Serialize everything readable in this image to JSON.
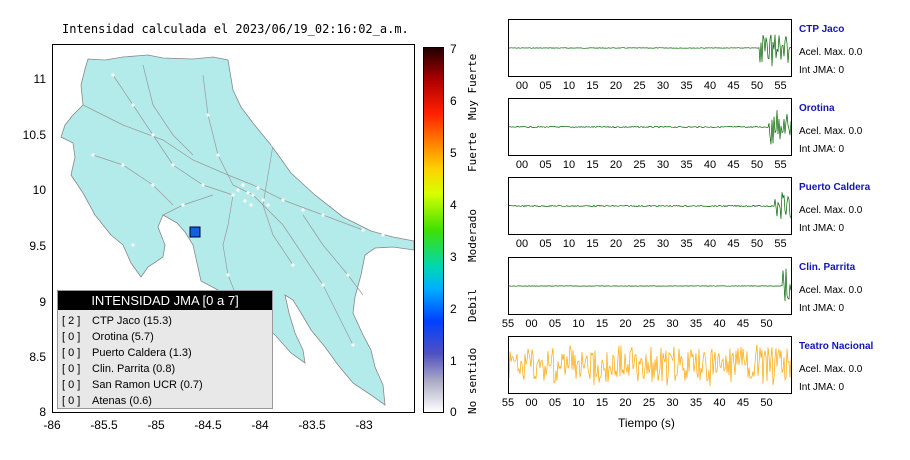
{
  "map": {
    "title": "Intensidad calculada el 2023/06/19_02:16:02_a.m.",
    "y_ticks": [
      "11",
      "10.5",
      "10",
      "9.5",
      "9",
      "8.5",
      "8"
    ],
    "x_ticks": [
      "-86",
      "-85.5",
      "-85",
      "-84.5",
      "-84",
      "-83.5",
      "-83"
    ],
    "land_color": "#b3eaea",
    "marker_color": "#1060e0"
  },
  "legend": {
    "header": "INTENSIDAD JMA [0 a 7]",
    "items": [
      {
        "level": "[ 2 ]",
        "station": "CTP Jaco (15.3)"
      },
      {
        "level": "[ 0 ]",
        "station": "Orotina (5.7)"
      },
      {
        "level": "[ 0 ]",
        "station": "Puerto Caldera (1.3)"
      },
      {
        "level": "[ 0 ]",
        "station": "Clin. Parrita (0.8)"
      },
      {
        "level": "[ 0 ]",
        "station": "San Ramon UCR (0.7)"
      },
      {
        "level": "[ 0 ]",
        "station": "Atenas (0.6)"
      }
    ]
  },
  "colorbar": {
    "ticks": [
      "7",
      "6",
      "5",
      "4",
      "3",
      "2",
      "1",
      "0"
    ],
    "labels": [
      "Muy Fuerte",
      "Fuerte",
      "Moderado",
      "Debil",
      "No sentido"
    ]
  },
  "traces": [
    {
      "name": "CTP Jaco",
      "acel": "Acel. Max. 0.0",
      "int": "Int JMA: 0",
      "ticks": [
        "00",
        "05",
        "10",
        "15",
        "20",
        "25",
        "30",
        "35",
        "40",
        "45",
        "50",
        "55"
      ],
      "color": "#006400"
    },
    {
      "name": "Orotina",
      "acel": "Acel. Max. 0.0",
      "int": "Int JMA: 0",
      "ticks": [
        "00",
        "05",
        "10",
        "15",
        "20",
        "25",
        "30",
        "35",
        "40",
        "45",
        "50",
        "55"
      ],
      "color": "#006400"
    },
    {
      "name": "Puerto Caldera",
      "acel": "Acel. Max. 0.0",
      "int": "Int JMA: 0",
      "ticks": [
        "00",
        "05",
        "10",
        "15",
        "20",
        "25",
        "30",
        "35",
        "40",
        "45",
        "50",
        "55"
      ],
      "color": "#006400"
    },
    {
      "name": "Clin. Parrita",
      "acel": "Acel. Max. 0.0",
      "int": "Int JMA: 0",
      "ticks": [
        "55",
        "00",
        "05",
        "10",
        "15",
        "20",
        "25",
        "30",
        "35",
        "40",
        "45",
        "50"
      ],
      "color": "#006400"
    },
    {
      "name": "Teatro Nacional",
      "acel": "Acel. Max. 0.0",
      "int": "Int JMA: 0",
      "ticks": [
        "55",
        "00",
        "05",
        "10",
        "15",
        "20",
        "25",
        "30",
        "35",
        "40",
        "45",
        "50"
      ],
      "color": "#ffa500"
    }
  ],
  "time_axis_label": "Tiempo (s)"
}
